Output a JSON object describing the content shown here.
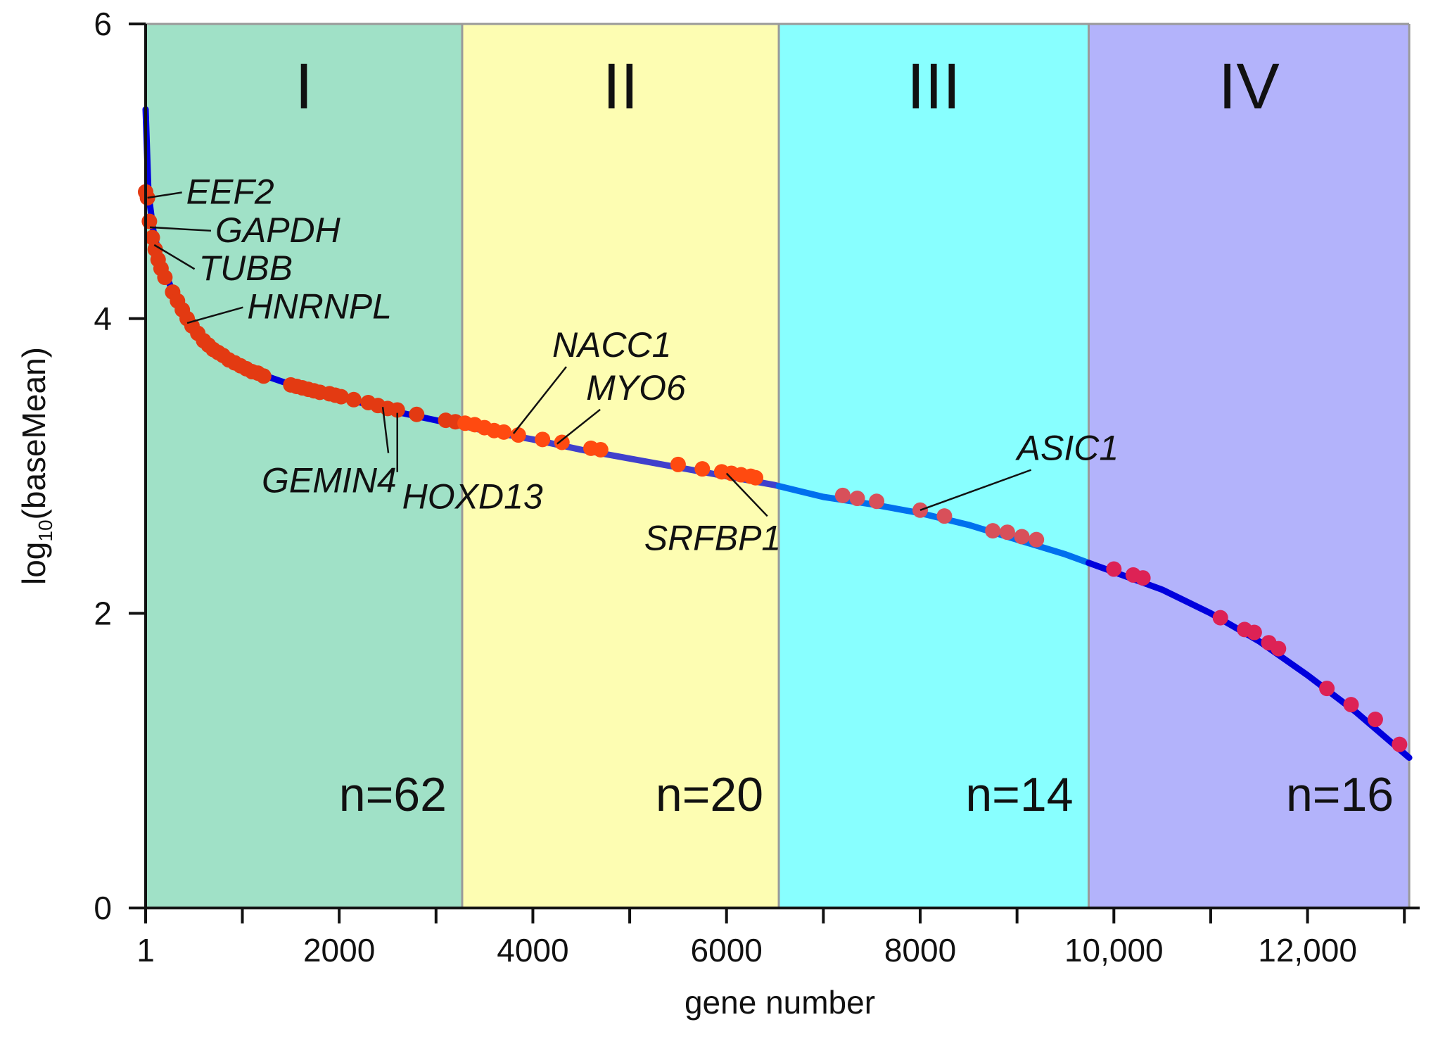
{
  "chart_data": {
    "type": "scatter",
    "title": "",
    "xlabel": "gene number",
    "ylabel_prefix": "log",
    "ylabel_sub": "10",
    "ylabel_suffix": "(baseMean)",
    "xlim": [
      1,
      13100
    ],
    "ylim": [
      0,
      6
    ],
    "x_ticks": [
      1,
      2000,
      4000,
      6000,
      8000,
      10000,
      12000
    ],
    "x_tick_labels": [
      "1",
      "2000",
      "4000",
      "6000",
      "8000",
      "10,000",
      "12,000"
    ],
    "x_minor_ticks": [
      1000,
      3000,
      5000,
      7000,
      9000,
      11000,
      13000
    ],
    "y_ticks": [
      0,
      2,
      4,
      6
    ],
    "y_tick_labels": [
      "0",
      "2",
      "4",
      "6"
    ],
    "regions": [
      {
        "label": "I",
        "count_label": "n=62",
        "x_start": 1,
        "x_end": 3270,
        "color": "#a0e1c7"
      },
      {
        "label": "II",
        "count_label": "n=20",
        "x_start": 3270,
        "x_end": 6540,
        "color": "#fdfdb2"
      },
      {
        "label": "III",
        "count_label": "n=14",
        "x_start": 6540,
        "x_end": 9740,
        "color": "#88ffff"
      },
      {
        "label": "IV",
        "count_label": "n=16",
        "x_start": 9740,
        "x_end": 13050,
        "color": "#b3b3fb"
      }
    ],
    "curve": {
      "name": "all genes",
      "x": [
        1,
        30,
        80,
        150,
        300,
        500,
        800,
        1200,
        1600,
        2000,
        2500,
        3000,
        3500,
        4000,
        4500,
        5000,
        5500,
        6000,
        6500,
        7000,
        7500,
        8000,
        8500,
        9000,
        9500,
        10000,
        10500,
        11000,
        11500,
        12000,
        12500,
        13050
      ],
      "y": [
        5.42,
        4.85,
        4.6,
        4.4,
        4.15,
        3.92,
        3.75,
        3.62,
        3.53,
        3.47,
        3.38,
        3.31,
        3.24,
        3.18,
        3.11,
        3.05,
        2.99,
        2.93,
        2.87,
        2.79,
        2.74,
        2.68,
        2.6,
        2.5,
        2.4,
        2.28,
        2.16,
        2.0,
        1.81,
        1.58,
        1.33,
        1.02
      ],
      "colors": [
        "#0000dd",
        "#4040cc",
        "#0070ee",
        "#0000dd"
      ]
    },
    "highlighted_genes": {
      "colors": [
        "#e33a12",
        "#ff4a10",
        "#d8505a",
        "#dd2255"
      ],
      "points": [
        {
          "x": 1,
          "y": 4.86
        },
        {
          "x": 20,
          "y": 4.82
        },
        {
          "x": 40,
          "y": 4.66
        },
        {
          "x": 70,
          "y": 4.55
        },
        {
          "x": 100,
          "y": 4.47
        },
        {
          "x": 130,
          "y": 4.4
        },
        {
          "x": 160,
          "y": 4.34
        },
        {
          "x": 200,
          "y": 4.28
        },
        {
          "x": 280,
          "y": 4.18
        },
        {
          "x": 330,
          "y": 4.12
        },
        {
          "x": 380,
          "y": 4.06
        },
        {
          "x": 430,
          "y": 4.0
        },
        {
          "x": 480,
          "y": 3.95
        },
        {
          "x": 540,
          "y": 3.9
        },
        {
          "x": 600,
          "y": 3.85
        },
        {
          "x": 650,
          "y": 3.82
        },
        {
          "x": 700,
          "y": 3.79
        },
        {
          "x": 750,
          "y": 3.77
        },
        {
          "x": 800,
          "y": 3.75
        },
        {
          "x": 860,
          "y": 3.72
        },
        {
          "x": 920,
          "y": 3.7
        },
        {
          "x": 980,
          "y": 3.68
        },
        {
          "x": 1040,
          "y": 3.66
        },
        {
          "x": 1100,
          "y": 3.64
        },
        {
          "x": 1160,
          "y": 3.63
        },
        {
          "x": 1220,
          "y": 3.61
        },
        {
          "x": 1500,
          "y": 3.55
        },
        {
          "x": 1560,
          "y": 3.54
        },
        {
          "x": 1620,
          "y": 3.53
        },
        {
          "x": 1680,
          "y": 3.52
        },
        {
          "x": 1740,
          "y": 3.51
        },
        {
          "x": 1800,
          "y": 3.5
        },
        {
          "x": 1900,
          "y": 3.49
        },
        {
          "x": 1960,
          "y": 3.48
        },
        {
          "x": 2020,
          "y": 3.47
        },
        {
          "x": 2150,
          "y": 3.45
        },
        {
          "x": 2300,
          "y": 3.43
        },
        {
          "x": 2400,
          "y": 3.41
        },
        {
          "x": 2500,
          "y": 3.39
        },
        {
          "x": 2600,
          "y": 3.38
        },
        {
          "x": 2800,
          "y": 3.35
        },
        {
          "x": 3100,
          "y": 3.31
        },
        {
          "x": 3200,
          "y": 3.3
        },
        {
          "x": 3300,
          "y": 3.29
        },
        {
          "x": 3400,
          "y": 3.28
        },
        {
          "x": 3500,
          "y": 3.26
        },
        {
          "x": 3600,
          "y": 3.24
        },
        {
          "x": 3700,
          "y": 3.23
        },
        {
          "x": 3850,
          "y": 3.21
        },
        {
          "x": 4100,
          "y": 3.18
        },
        {
          "x": 4300,
          "y": 3.16
        },
        {
          "x": 4600,
          "y": 3.12
        },
        {
          "x": 4700,
          "y": 3.11
        },
        {
          "x": 5500,
          "y": 3.01
        },
        {
          "x": 5750,
          "y": 2.98
        },
        {
          "x": 5950,
          "y": 2.96
        },
        {
          "x": 6050,
          "y": 2.95
        },
        {
          "x": 6150,
          "y": 2.94
        },
        {
          "x": 6250,
          "y": 2.93
        },
        {
          "x": 6300,
          "y": 2.92
        },
        {
          "x": 7200,
          "y": 2.8
        },
        {
          "x": 7350,
          "y": 2.78
        },
        {
          "x": 7550,
          "y": 2.76
        },
        {
          "x": 8000,
          "y": 2.7
        },
        {
          "x": 8250,
          "y": 2.66
        },
        {
          "x": 8750,
          "y": 2.56
        },
        {
          "x": 8900,
          "y": 2.55
        },
        {
          "x": 9050,
          "y": 2.52
        },
        {
          "x": 9200,
          "y": 2.5
        },
        {
          "x": 10000,
          "y": 2.3
        },
        {
          "x": 10200,
          "y": 2.26
        },
        {
          "x": 10300,
          "y": 2.24
        },
        {
          "x": 11100,
          "y": 1.97
        },
        {
          "x": 11350,
          "y": 1.89
        },
        {
          "x": 11450,
          "y": 1.87
        },
        {
          "x": 11600,
          "y": 1.8
        },
        {
          "x": 11700,
          "y": 1.76
        },
        {
          "x": 12200,
          "y": 1.49
        },
        {
          "x": 12450,
          "y": 1.38
        },
        {
          "x": 12700,
          "y": 1.28
        },
        {
          "x": 12950,
          "y": 1.11
        }
      ]
    },
    "annotations": [
      {
        "text": "EEF2",
        "x": 20,
        "y": 4.82,
        "label_x": 420,
        "label_y": 4.78
      },
      {
        "text": "GAPDH",
        "x": 45,
        "y": 4.62,
        "label_x": 720,
        "label_y": 4.52
      },
      {
        "text": "TUBB",
        "x": 90,
        "y": 4.5,
        "label_x": 550,
        "label_y": 4.26
      },
      {
        "text": "HNRNPL",
        "x": 430,
        "y": 3.97,
        "label_x": 1050,
        "label_y": 4.0
      },
      {
        "text": "NACC1",
        "x": 3800,
        "y": 3.22,
        "label_x": 4200,
        "label_y": 3.74
      },
      {
        "text": "MYO6",
        "x": 4250,
        "y": 3.15,
        "label_x": 4550,
        "label_y": 3.45
      },
      {
        "text": "GEMIN4",
        "x": 2450,
        "y": 3.4,
        "label_x": 1200,
        "label_y": 2.82
      },
      {
        "text": "HOXD13",
        "x": 2600,
        "y": 3.36,
        "label_x": 2650,
        "label_y": 2.71
      },
      {
        "text": "SRFBP1",
        "x": 6000,
        "y": 2.95,
        "label_x": 5150,
        "label_y": 2.43
      },
      {
        "text": "ASIC1",
        "x": 8000,
        "y": 2.7,
        "label_x": 9000,
        "label_y": 3.04
      }
    ]
  }
}
